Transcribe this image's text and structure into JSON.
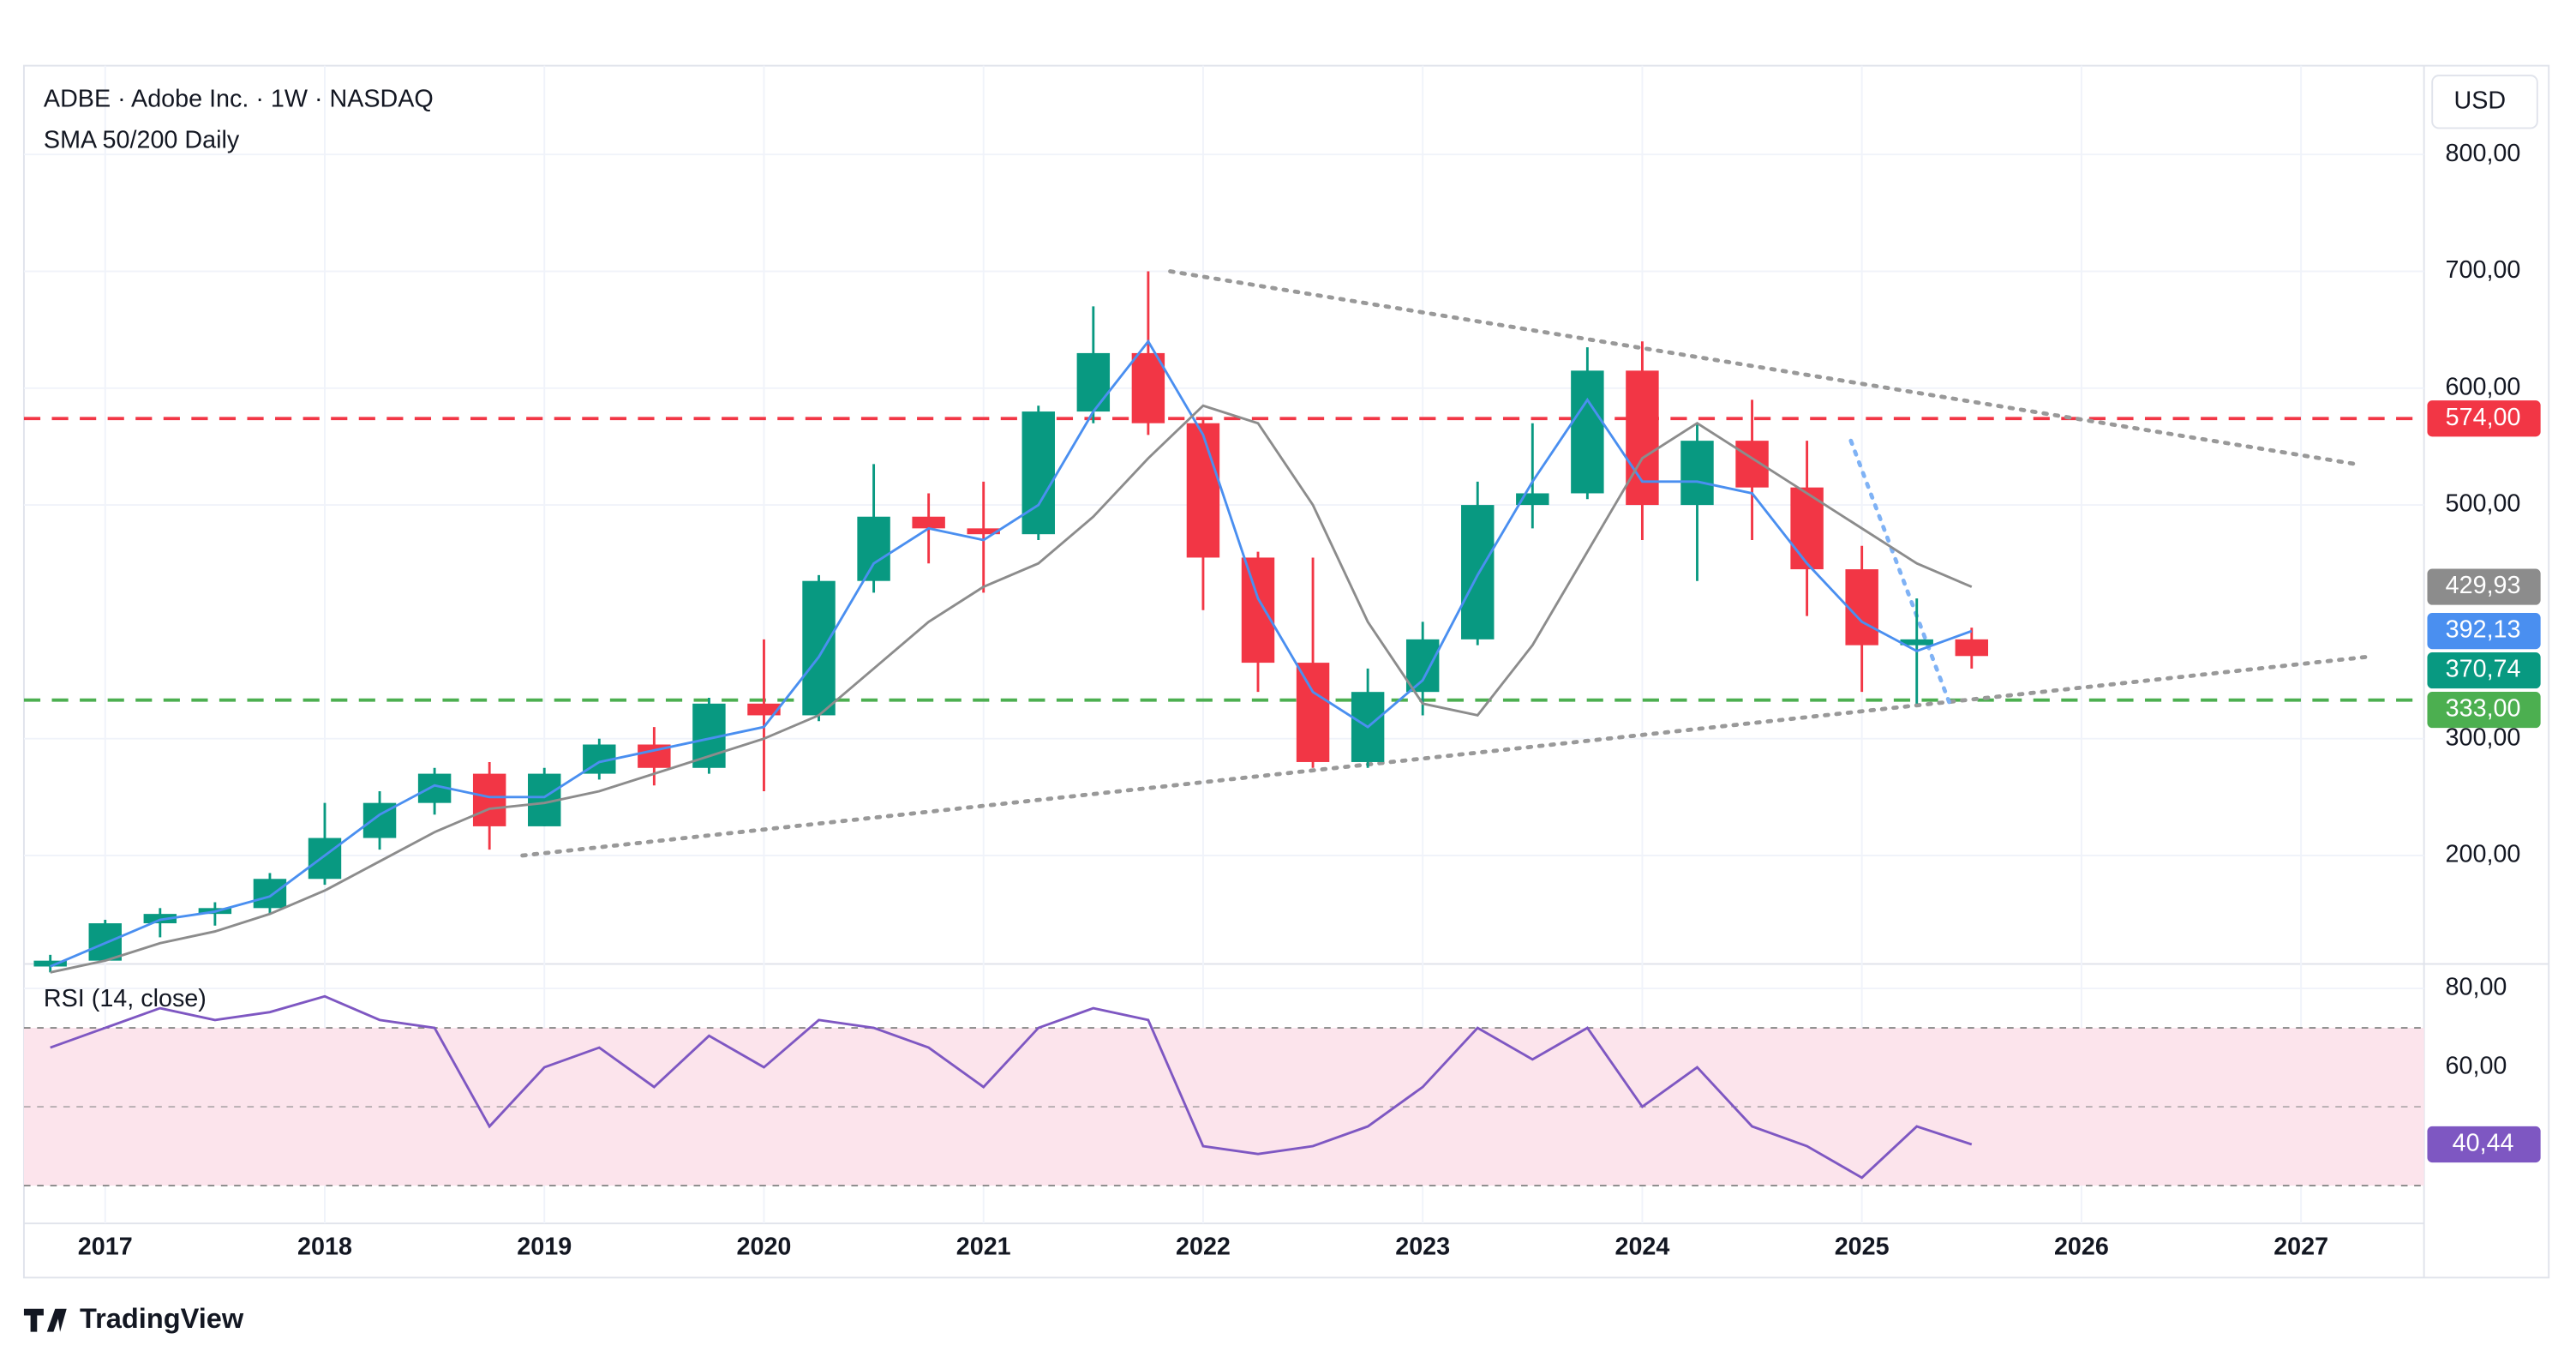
{
  "chart_data": {
    "type": "candlestick",
    "title": "ADBE · Adobe Inc. · 1W · NASDAQ",
    "subtitle": "SMA 50/200 Daily",
    "currency": "USD",
    "x": [
      2016.75,
      2017.0,
      2017.25,
      2017.5,
      2017.75,
      2018.0,
      2018.25,
      2018.5,
      2018.75,
      2019.0,
      2019.25,
      2019.5,
      2019.75,
      2020.0,
      2020.25,
      2020.5,
      2020.75,
      2021.0,
      2021.25,
      2021.5,
      2021.75,
      2022.0,
      2022.25,
      2022.5,
      2022.75,
      2023.0,
      2023.25,
      2023.5,
      2023.75,
      2024.0,
      2024.25,
      2024.5,
      2024.75,
      2025.0,
      2025.25,
      2025.5
    ],
    "open": [
      105,
      110,
      142,
      150,
      155,
      180,
      215,
      245,
      270,
      225,
      270,
      295,
      275,
      330,
      320,
      435,
      490,
      480,
      475,
      580,
      630,
      570,
      455,
      365,
      280,
      340,
      385,
      500,
      510,
      615,
      500,
      555,
      515,
      445,
      380,
      385
    ],
    "high": [
      115,
      145,
      155,
      160,
      185,
      245,
      255,
      275,
      280,
      275,
      300,
      310,
      335,
      385,
      440,
      535,
      510,
      520,
      585,
      670,
      700,
      575,
      460,
      455,
      360,
      400,
      520,
      570,
      635,
      640,
      570,
      590,
      555,
      465,
      420,
      395
    ],
    "low": [
      100,
      110,
      130,
      140,
      150,
      175,
      205,
      235,
      205,
      225,
      265,
      260,
      270,
      255,
      315,
      425,
      450,
      425,
      470,
      570,
      560,
      410,
      340,
      275,
      275,
      320,
      380,
      480,
      505,
      470,
      435,
      470,
      405,
      340,
      330,
      360
    ],
    "close": [
      110,
      142,
      150,
      155,
      180,
      215,
      245,
      270,
      225,
      270,
      295,
      275,
      330,
      320,
      435,
      490,
      480,
      475,
      580,
      630,
      570,
      455,
      365,
      280,
      340,
      385,
      500,
      510,
      615,
      500,
      555,
      515,
      445,
      380,
      385,
      370.74
    ],
    "up_color": "#089981",
    "down_color": "#f23645",
    "series": [
      {
        "color": "#4a8ff0",
        "values": [
          105,
          125,
          145,
          152,
          165,
          200,
          235,
          260,
          250,
          250,
          280,
          290,
          300,
          310,
          370,
          450,
          480,
          470,
          500,
          580,
          640,
          560,
          420,
          340,
          310,
          350,
          440,
          520,
          590,
          520,
          520,
          510,
          450,
          400,
          375,
          392.13
        ]
      },
      {
        "color": "#8c8c8c",
        "values": [
          100,
          110,
          125,
          135,
          150,
          170,
          195,
          220,
          240,
          245,
          255,
          270,
          285,
          300,
          320,
          360,
          400,
          430,
          450,
          490,
          540,
          585,
          570,
          500,
          400,
          330,
          320,
          380,
          460,
          540,
          570,
          540,
          510,
          480,
          450,
          429.93
        ]
      }
    ],
    "xlim": [
      2016.63,
      2027.56
    ],
    "ylim": [
      110,
      876
    ],
    "xticks": [
      2017,
      2018,
      2019,
      2020,
      2021,
      2022,
      2023,
      2024,
      2025,
      2026,
      2027
    ],
    "yticks": [
      {
        "value": 200,
        "label": "200,00"
      },
      {
        "value": 300,
        "label": "300,00"
      },
      {
        "value": 500,
        "label": "500,00"
      },
      {
        "value": 600,
        "label": "600,00"
      },
      {
        "value": 700,
        "label": "700,00"
      },
      {
        "value": 800,
        "label": "800,00"
      }
    ],
    "grid": true,
    "hlines": [
      {
        "value": 574,
        "label": "574,00",
        "color": "#f23645"
      },
      {
        "value": 333,
        "label": "333,00",
        "color": "#4caf50"
      }
    ],
    "trendlines": [
      {
        "x": [
          2021.85,
          2027.25
        ],
        "y": [
          700,
          535
        ],
        "color": "#999999"
      },
      {
        "x": [
          2018.9,
          2027.3
        ],
        "y": [
          200,
          370
        ],
        "color": "#999999"
      },
      {
        "x": [
          2024.95,
          2025.4
        ],
        "y": [
          555,
          330
        ],
        "color": "#7fb2f5"
      }
    ],
    "last_values": [
      {
        "value": 429.93,
        "label": "429,93",
        "color": "#8c8c8c"
      },
      {
        "value": 392.13,
        "label": "392,13",
        "color": "#4a8ff0"
      },
      {
        "value": 370.74,
        "label": "370,74",
        "color": "#089981"
      }
    ],
    "rsi": {
      "title": "RSI (14, close)",
      "color": "#7e57c2",
      "values": [
        65,
        70,
        75,
        72,
        74,
        78,
        72,
        70,
        45,
        60,
        65,
        55,
        68,
        60,
        72,
        70,
        65,
        55,
        70,
        75,
        72,
        40,
        38,
        40,
        45,
        55,
        70,
        62,
        70,
        50,
        60,
        45,
        40,
        32,
        45,
        40.44
      ],
      "ylim": [
        20.4,
        85.8
      ],
      "yticks": [
        {
          "value": 80,
          "label": "80,00"
        },
        {
          "value": 60,
          "label": "60,00"
        }
      ],
      "levels": [
        70,
        50,
        30
      ],
      "last": {
        "value": 40.44,
        "label": "40,44"
      }
    }
  },
  "brand": "TradingView"
}
